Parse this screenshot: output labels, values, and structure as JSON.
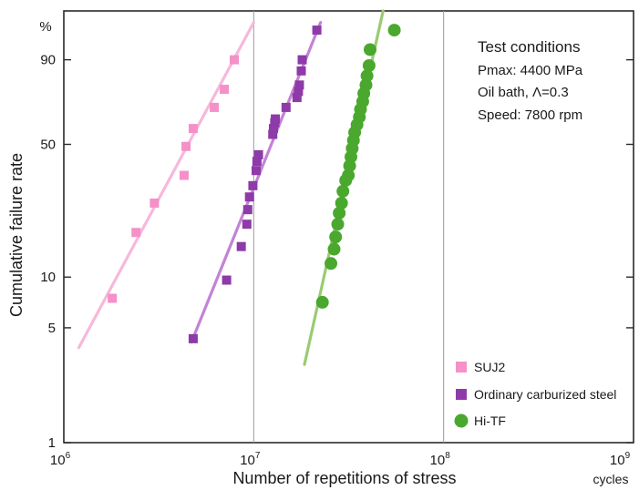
{
  "chart_data": {
    "type": "scatter",
    "title": "",
    "xlabel": "Number of repetitions of stress",
    "xunit": "cycles",
    "ylabel": "Cumulative failure rate",
    "yunit": "%",
    "xscale": "log",
    "yscale": "weibull",
    "xlim": [
      1000000,
      1000000000
    ],
    "ylim": [
      1,
      99
    ],
    "x_ticks": [
      {
        "value": 1000000,
        "base": "10",
        "exp": "6"
      },
      {
        "value": 10000000,
        "base": "10",
        "exp": "7"
      },
      {
        "value": 100000000,
        "base": "10",
        "exp": "8"
      },
      {
        "value": 1000000000,
        "base": "10",
        "exp": "9"
      }
    ],
    "y_ticks": [
      {
        "value": 1,
        "label": "1"
      },
      {
        "value": 5,
        "label": "5"
      },
      {
        "value": 10,
        "label": "10"
      },
      {
        "value": 50,
        "label": "50"
      },
      {
        "value": 90,
        "label": "90"
      }
    ],
    "grid": "vertical",
    "legend_position": "bottom-right",
    "annotation": {
      "title": "Test conditions",
      "lines": [
        "Pmax: 4400 MPa",
        "Oil bath, Λ=0.3",
        "Speed: 7800 rpm"
      ]
    },
    "series": [
      {
        "name": "SUJ2",
        "color": "#f590c8",
        "line_color": "#f6b8dc",
        "marker": "square",
        "x": [
          1800000,
          2400000,
          3000000,
          4300000,
          4400000,
          4800000,
          6200000,
          7000000,
          7900000
        ],
        "y": [
          7.5,
          18,
          26,
          36,
          49,
          58,
          69,
          78,
          90
        ],
        "fit": {
          "x": [
            1200000,
            10000000
          ],
          "y": [
            3.8,
            98
          ]
        }
      },
      {
        "name": "Ordinary carburized steel",
        "color": "#8e3aa8",
        "line_color": "#c383d6",
        "marker": "square",
        "x": [
          4800000,
          7200000,
          8600000,
          9200000,
          9300000,
          9500000,
          9900000,
          10300000,
          10400000,
          10600000,
          12600000,
          12700000,
          12900000,
          13000000,
          14800000,
          16900000,
          17200000,
          17400000,
          17800000,
          18000000,
          21500000
        ],
        "y": [
          4.3,
          9.6,
          15,
          20,
          24,
          28,
          32,
          38,
          42,
          45,
          55,
          58,
          61,
          63,
          69,
          74,
          77,
          80,
          86,
          90,
          97
        ],
        "fit": {
          "x": [
            4700000,
            22500000
          ],
          "y": [
            4.1,
            98
          ]
        }
      },
      {
        "name": "Hi-TF",
        "color": "#4aa82e",
        "line_color": "#9acb72",
        "marker": "circle",
        "x": [
          23000000,
          25500000,
          26500000,
          27000000,
          27700000,
          28200000,
          29000000,
          29500000,
          30500000,
          31500000,
          32000000,
          32500000,
          33000000,
          33500000,
          34000000,
          35000000,
          36000000,
          36500000,
          37500000,
          38000000,
          39000000,
          39500000,
          40500000,
          41000000,
          55000000
        ],
        "y": [
          7.1,
          12,
          14.5,
          17,
          20,
          23,
          26,
          30,
          34,
          36,
          40,
          44,
          48,
          52,
          56,
          60,
          64,
          68,
          72,
          76,
          80,
          84,
          88,
          93,
          97
        ],
        "fit": {
          "x": [
            18500000,
            48000000
          ],
          "y": [
            3,
            99
          ]
        }
      }
    ]
  }
}
